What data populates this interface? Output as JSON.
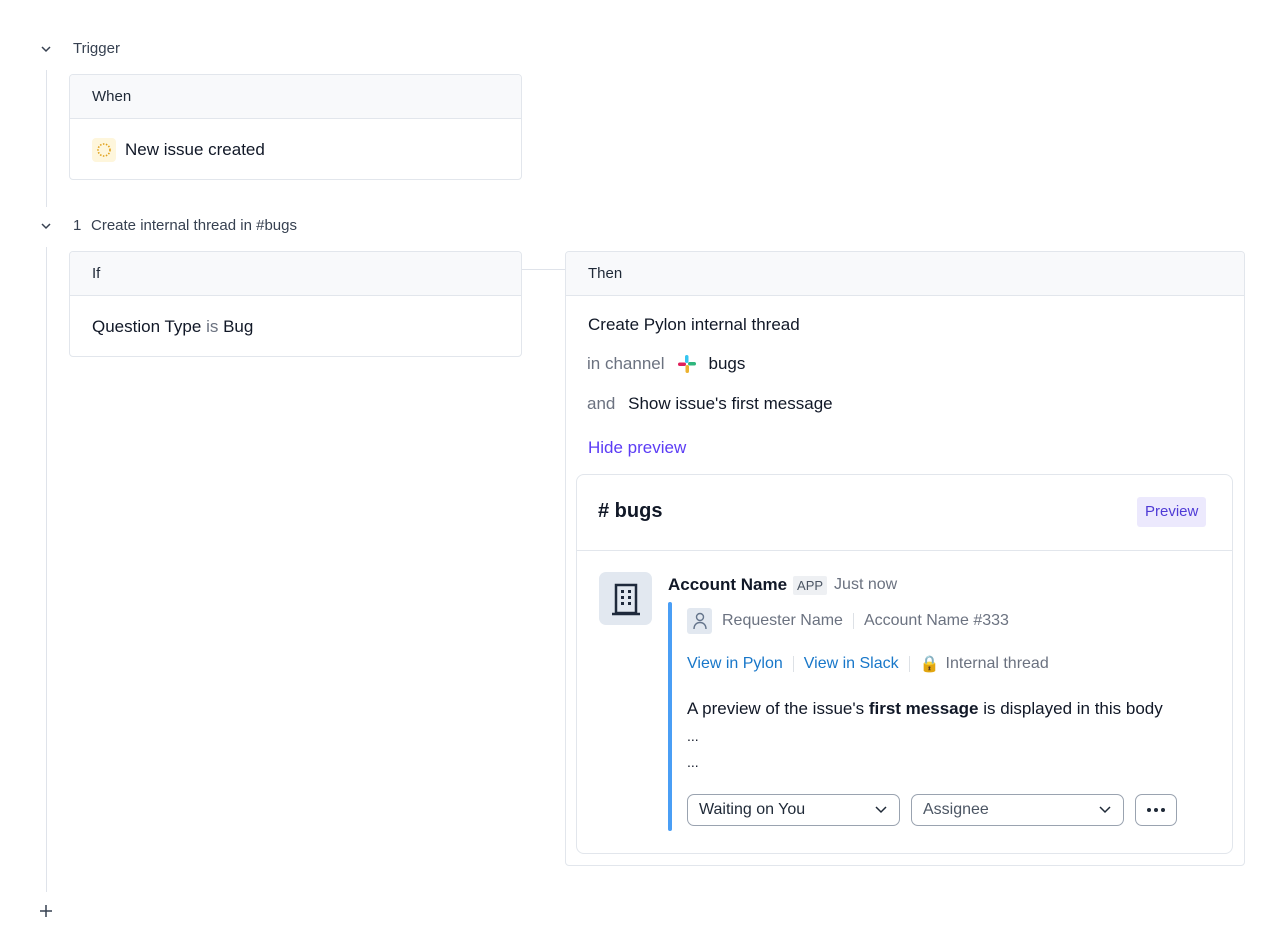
{
  "trigger": {
    "label": "Trigger",
    "when_header": "When",
    "event": "New issue created"
  },
  "step": {
    "number": "1",
    "title": "Create internal thread in #bugs",
    "if": {
      "header": "If",
      "field": "Question Type",
      "operator": "is",
      "value": "Bug"
    },
    "then": {
      "header": "Then",
      "action": "Create Pylon internal thread",
      "in_channel_label": "in channel",
      "channel": "bugs",
      "and_label": "and",
      "option": "Show issue's first message",
      "hide_preview": "Hide preview"
    }
  },
  "preview": {
    "channel_title": "# bugs",
    "badge": "Preview",
    "sender": "Account Name",
    "app_badge": "APP",
    "time": "Just now",
    "requester": "Requester Name",
    "account": "Account Name #333",
    "view_pylon": "View in Pylon",
    "view_slack": "View in Slack",
    "internal": "Internal thread",
    "body_pre": "A preview of the issue's ",
    "body_bold": "first message",
    "body_post": " is displayed in this body",
    "ellipsis1": "...",
    "ellipsis2": "...",
    "status_select": "Waiting on You",
    "assignee_select": "Assignee"
  },
  "colors": {
    "accent": "#5b3cf5",
    "link": "#1877c9",
    "quote_bar": "#4a9ef5",
    "badge_bg": "#ece9fd"
  }
}
